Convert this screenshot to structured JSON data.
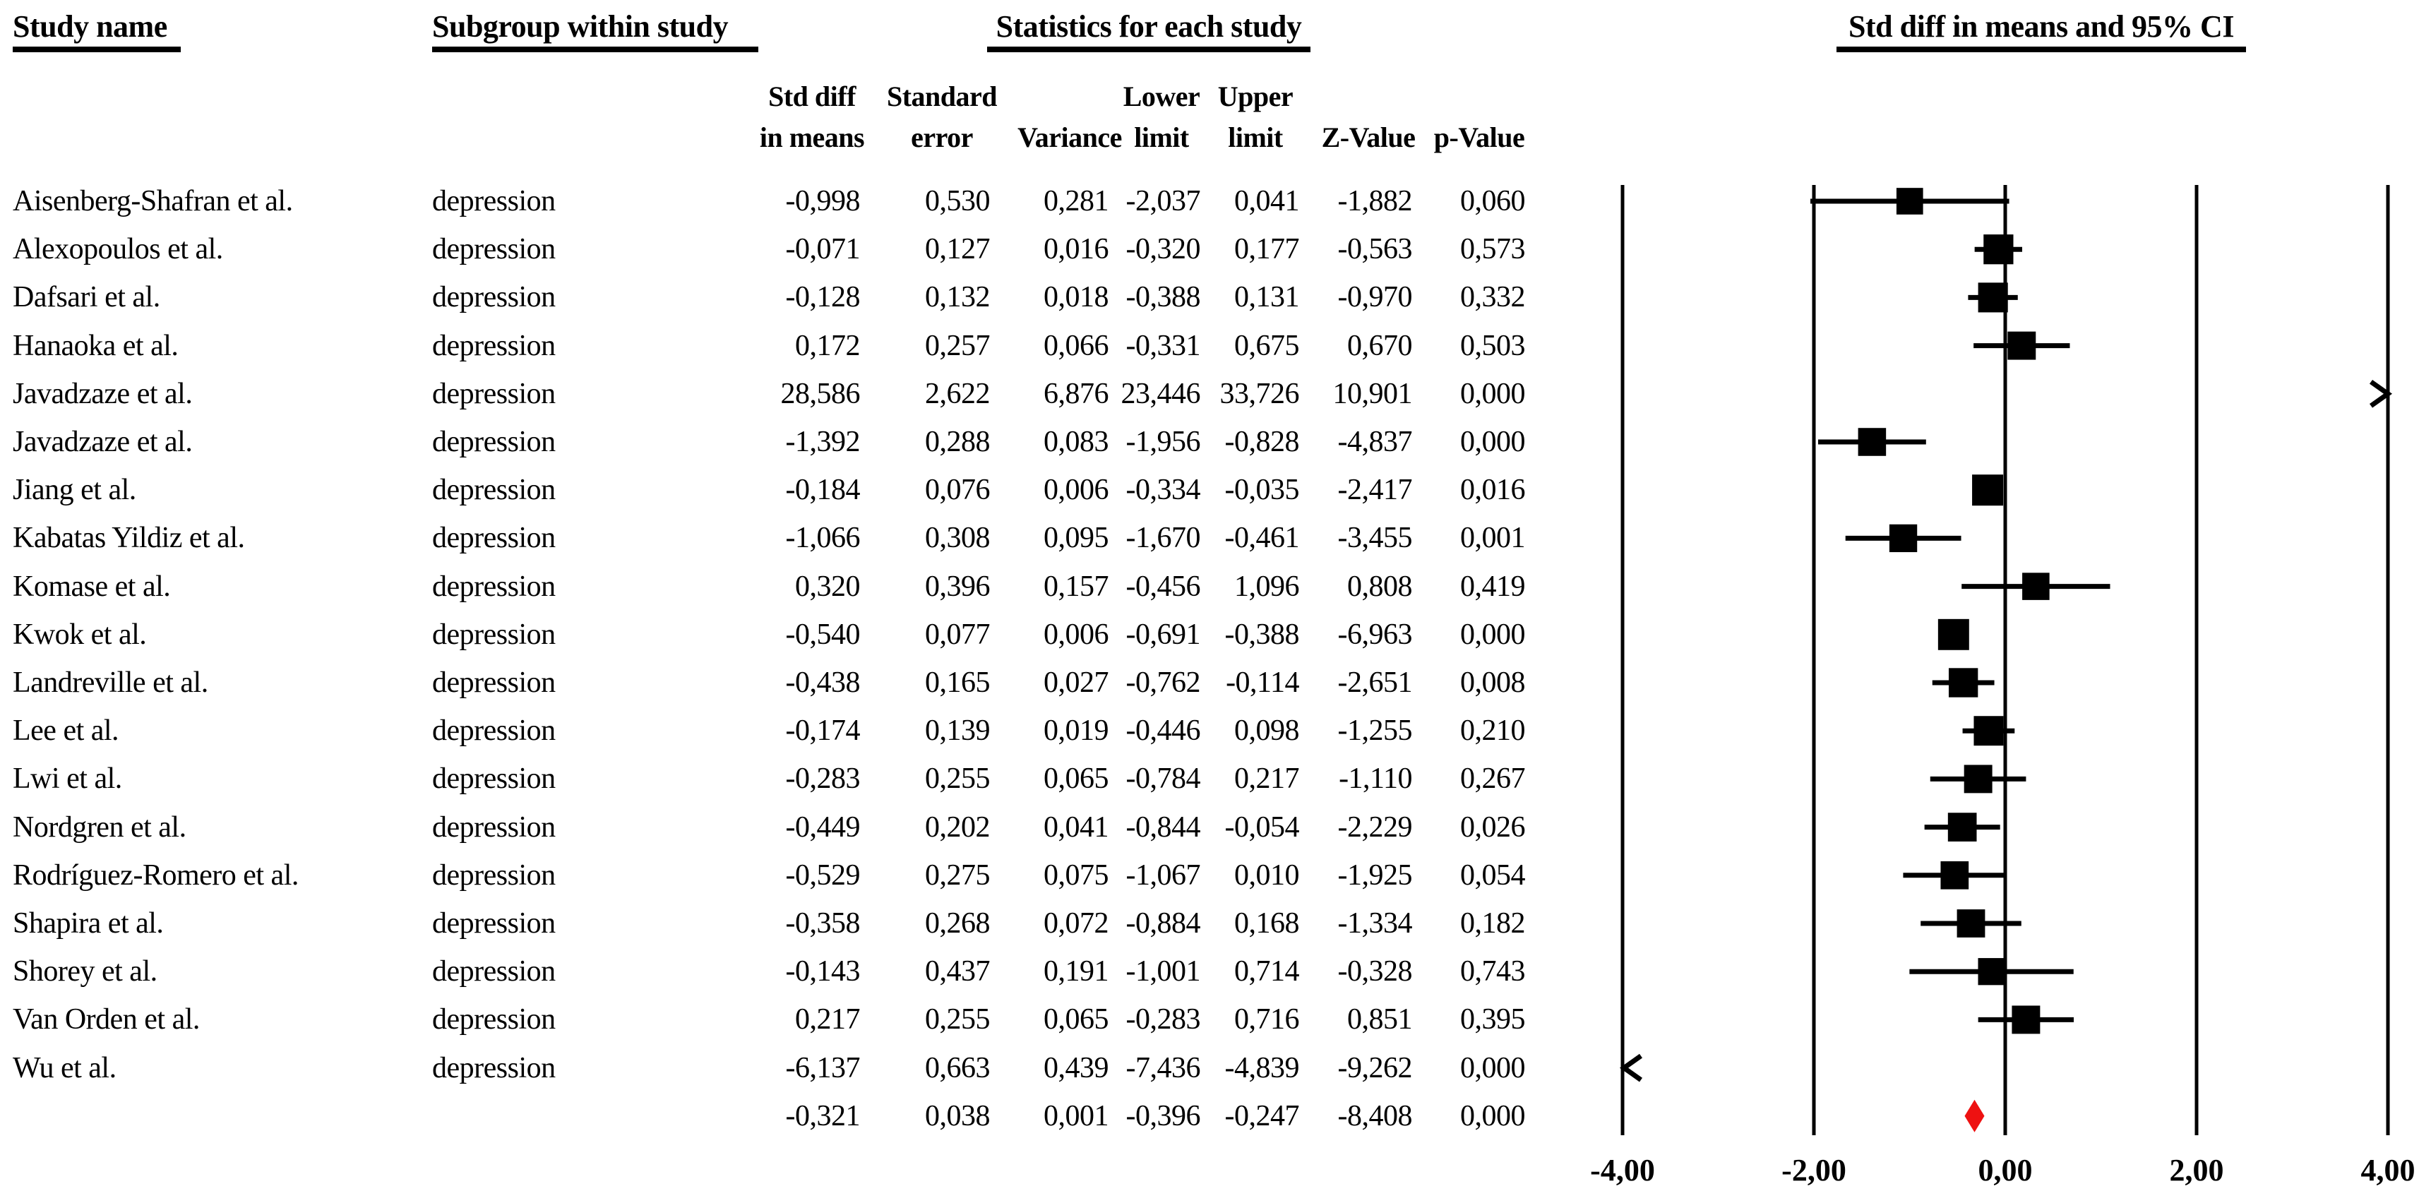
{
  "columns": {
    "study": "Study name",
    "subgroup": "Subgroup within study",
    "statistics": "Statistics for each study",
    "plot": "Std diff in means and 95% CI"
  },
  "stat_columns": [
    {
      "line1": "Std diff",
      "line2": "in means"
    },
    {
      "line1": "Standard",
      "line2": "error"
    },
    {
      "line1": "",
      "line2": "Variance"
    },
    {
      "line1": "Lower",
      "line2": "limit"
    },
    {
      "line1": "Upper",
      "line2": "limit"
    },
    {
      "line1": "",
      "line2": "Z-Value"
    },
    {
      "line1": "",
      "line2": "p-Value"
    }
  ],
  "chart_data": {
    "type": "scatter",
    "subtype": "forest-plot",
    "title": "Std diff in means and 95% CI",
    "x_axis": {
      "min": -4,
      "max": 4,
      "ticks": [
        -4,
        -2,
        0,
        2,
        4
      ],
      "tick_labels": [
        "-4,00",
        "-2,00",
        "0,00",
        "2,00",
        "4,00"
      ]
    },
    "decimal_separator": ",",
    "marker_color": "#000000",
    "summary_color": "#ee1111",
    "studies": [
      {
        "study": "Aisenberg-Shafran et al.",
        "subgroup": "depression",
        "mean": -0.998,
        "se": 0.53,
        "variance": 0.281,
        "ll": -2.037,
        "ul": 0.041,
        "z": -1.882,
        "p": 0.06
      },
      {
        "study": "Alexopoulos et al.",
        "subgroup": "depression",
        "mean": -0.071,
        "se": 0.127,
        "variance": 0.016,
        "ll": -0.32,
        "ul": 0.177,
        "z": -0.563,
        "p": 0.573
      },
      {
        "study": "Dafsari et al.",
        "subgroup": "depression",
        "mean": -0.128,
        "se": 0.132,
        "variance": 0.018,
        "ll": -0.388,
        "ul": 0.131,
        "z": -0.97,
        "p": 0.332
      },
      {
        "study": "Hanaoka et al.",
        "subgroup": "depression",
        "mean": 0.172,
        "se": 0.257,
        "variance": 0.066,
        "ll": -0.331,
        "ul": 0.675,
        "z": 0.67,
        "p": 0.503
      },
      {
        "study": "Javadzaze et al.",
        "subgroup": "depression",
        "mean": 28.586,
        "se": 2.622,
        "variance": 6.876,
        "ll": 23.446,
        "ul": 33.726,
        "z": 10.901,
        "p": 0.0
      },
      {
        "study": "Javadzaze et al.",
        "subgroup": "depression",
        "mean": -1.392,
        "se": 0.288,
        "variance": 0.083,
        "ll": -1.956,
        "ul": -0.828,
        "z": -4.837,
        "p": 0.0
      },
      {
        "study": "Jiang et al.",
        "subgroup": "depression",
        "mean": -0.184,
        "se": 0.076,
        "variance": 0.006,
        "ll": -0.334,
        "ul": -0.035,
        "z": -2.417,
        "p": 0.016
      },
      {
        "study": "Kabatas Yildiz et al.",
        "subgroup": "depression",
        "mean": -1.066,
        "se": 0.308,
        "variance": 0.095,
        "ll": -1.67,
        "ul": -0.461,
        "z": -3.455,
        "p": 0.001
      },
      {
        "study": "Komase et al.",
        "subgroup": "depression",
        "mean": 0.32,
        "se": 0.396,
        "variance": 0.157,
        "ll": -0.456,
        "ul": 1.096,
        "z": 0.808,
        "p": 0.419
      },
      {
        "study": "Kwok et al.",
        "subgroup": "depression",
        "mean": -0.54,
        "se": 0.077,
        "variance": 0.006,
        "ll": -0.691,
        "ul": -0.388,
        "z": -6.963,
        "p": 0.0
      },
      {
        "study": "Landreville et al.",
        "subgroup": "depression",
        "mean": -0.438,
        "se": 0.165,
        "variance": 0.027,
        "ll": -0.762,
        "ul": -0.114,
        "z": -2.651,
        "p": 0.008
      },
      {
        "study": "Lee et al.",
        "subgroup": "depression",
        "mean": -0.174,
        "se": 0.139,
        "variance": 0.019,
        "ll": -0.446,
        "ul": 0.098,
        "z": -1.255,
        "p": 0.21
      },
      {
        "study": "Lwi et al.",
        "subgroup": "depression",
        "mean": -0.283,
        "se": 0.255,
        "variance": 0.065,
        "ll": -0.784,
        "ul": 0.217,
        "z": -1.11,
        "p": 0.267
      },
      {
        "study": "Nordgren et al.",
        "subgroup": "depression",
        "mean": -0.449,
        "se": 0.202,
        "variance": 0.041,
        "ll": -0.844,
        "ul": -0.054,
        "z": -2.229,
        "p": 0.026
      },
      {
        "study": "Rodríguez-Romero et al.",
        "subgroup": "depression",
        "mean": -0.529,
        "se": 0.275,
        "variance": 0.075,
        "ll": -1.067,
        "ul": 0.01,
        "z": -1.925,
        "p": 0.054
      },
      {
        "study": "Shapira et al.",
        "subgroup": "depression",
        "mean": -0.358,
        "se": 0.268,
        "variance": 0.072,
        "ll": -0.884,
        "ul": 0.168,
        "z": -1.334,
        "p": 0.182
      },
      {
        "study": "Shorey et al.",
        "subgroup": "depression",
        "mean": -0.143,
        "se": 0.437,
        "variance": 0.191,
        "ll": -1.001,
        "ul": 0.714,
        "z": -0.328,
        "p": 0.743
      },
      {
        "study": "Van Orden et al.",
        "subgroup": "depression",
        "mean": 0.217,
        "se": 0.255,
        "variance": 0.065,
        "ll": -0.283,
        "ul": 0.716,
        "z": 0.851,
        "p": 0.395
      },
      {
        "study": "Wu et al.",
        "subgroup": "depression",
        "mean": -6.137,
        "se": 0.663,
        "variance": 0.439,
        "ll": -7.436,
        "ul": -4.839,
        "z": -9.262,
        "p": 0.0
      }
    ],
    "summary": {
      "study": "",
      "subgroup": "",
      "mean": -0.321,
      "se": 0.038,
      "variance": 0.001,
      "ll": -0.396,
      "ul": -0.247,
      "z": -8.408,
      "p": 0.0
    }
  }
}
